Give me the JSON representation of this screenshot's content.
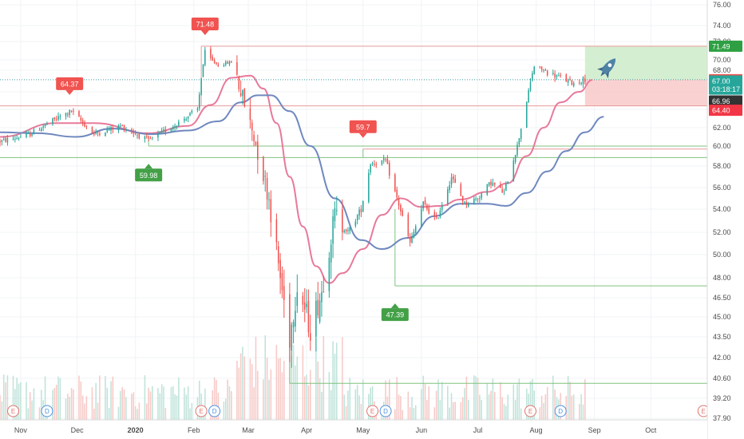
{
  "chart_data": {
    "type": "candlestick",
    "y_axis": {
      "ticks": [
        76.0,
        74.0,
        72.0,
        70.0,
        68.0,
        66.0,
        64.0,
        62.0,
        60.0,
        58.0,
        56.0,
        54.0,
        52.0,
        50.0,
        48.0,
        46.5,
        45.0,
        43.5,
        42.0,
        40.6,
        39.2,
        37.9
      ],
      "tick_labels": [
        "76.00",
        "74.00",
        "72.00",
        "70.00",
        "68.00",
        "66.00",
        "64.00",
        "62.00",
        "60.00",
        "58.00",
        "56.00",
        "54.00",
        "52.00",
        "50.00",
        "48.00",
        "46.50",
        "45.00",
        "43.50",
        "42.00",
        "40.60",
        "39.20",
        "37.90"
      ]
    },
    "x_axis": {
      "ticks": [
        {
          "date": "2019-11-01",
          "label": "Nov"
        },
        {
          "date": "2019-12-01",
          "label": "Dec"
        },
        {
          "date": "2020-01-01",
          "label": "2020"
        },
        {
          "date": "2020-02-01",
          "label": "Feb"
        },
        {
          "date": "2020-03-01",
          "label": "Mar"
        },
        {
          "date": "2020-04-01",
          "label": "Apr"
        },
        {
          "date": "2020-05-01",
          "label": "May"
        },
        {
          "date": "2020-06-01",
          "label": "Jun"
        },
        {
          "date": "2020-07-01",
          "label": "Jul"
        },
        {
          "date": "2020-08-01",
          "label": "Aug"
        },
        {
          "date": "2020-09-01",
          "label": "Sep"
        },
        {
          "date": "2020-10-01",
          "label": "Oct"
        }
      ]
    },
    "price_series": {
      "name": "",
      "anchors": [
        [
          "2019-10-21",
          60.5
        ],
        [
          "2019-11-05",
          61.2
        ],
        [
          "2019-11-20",
          63.0
        ],
        [
          "2019-11-28",
          63.8
        ],
        [
          "2019-12-10",
          61.3
        ],
        [
          "2019-12-24",
          62.2
        ],
        [
          "2020-01-08",
          60.6
        ],
        [
          "2020-01-22",
          62.3
        ],
        [
          "2020-02-03",
          64.0
        ],
        [
          "2020-02-07",
          70.8
        ],
        [
          "2020-02-14",
          69.0
        ],
        [
          "2020-02-21",
          69.6
        ],
        [
          "2020-02-26",
          66.0
        ],
        [
          "2020-03-04",
          61.0
        ],
        [
          "2020-03-12",
          55.0
        ],
        [
          "2020-03-18",
          48.0
        ],
        [
          "2020-03-23",
          43.5
        ],
        [
          "2020-03-27",
          47.5
        ],
        [
          "2020-04-03",
          44.2
        ],
        [
          "2020-04-09",
          47.0
        ],
        [
          "2020-04-16",
          53.5
        ],
        [
          "2020-04-23",
          52.0
        ],
        [
          "2020-04-30",
          54.0
        ],
        [
          "2020-05-05",
          58.3
        ],
        [
          "2020-05-13",
          58.5
        ],
        [
          "2020-05-19",
          55.0
        ],
        [
          "2020-05-26",
          51.0
        ],
        [
          "2020-06-02",
          54.5
        ],
        [
          "2020-06-09",
          53.0
        ],
        [
          "2020-06-17",
          57.0
        ],
        [
          "2020-06-24",
          54.5
        ],
        [
          "2020-07-01",
          55.0
        ],
        [
          "2020-07-08",
          56.5
        ],
        [
          "2020-07-15",
          55.5
        ],
        [
          "2020-07-22",
          60.0
        ],
        [
          "2020-07-27",
          65.0
        ],
        [
          "2020-07-31",
          68.7
        ],
        [
          "2020-08-07",
          67.8
        ],
        [
          "2020-08-14",
          67.3
        ],
        [
          "2020-08-21",
          66.8
        ],
        [
          "2020-08-27",
          67.2
        ]
      ]
    },
    "moving_averages": [
      {
        "name": "",
        "color": "#e8799a",
        "points": [
          [
            "2019-10-21",
            61.0
          ],
          [
            "2019-11-20",
            62.5
          ],
          [
            "2019-12-10",
            62.5
          ],
          [
            "2020-01-08",
            61.4
          ],
          [
            "2020-01-29",
            62.2
          ],
          [
            "2020-02-10",
            64.5
          ],
          [
            "2020-02-21",
            67.3
          ],
          [
            "2020-03-02",
            67.5
          ],
          [
            "2020-03-09",
            66.3
          ],
          [
            "2020-03-16",
            62.5
          ],
          [
            "2020-03-23",
            57.0
          ],
          [
            "2020-03-30",
            52.5
          ],
          [
            "2020-04-06",
            49.0
          ],
          [
            "2020-04-13",
            47.6
          ],
          [
            "2020-04-20",
            48.4
          ],
          [
            "2020-05-01",
            50.5
          ],
          [
            "2020-05-11",
            53.5
          ],
          [
            "2020-05-21",
            55.0
          ],
          [
            "2020-06-01",
            54.2
          ],
          [
            "2020-06-11",
            54.3
          ],
          [
            "2020-06-22",
            54.9
          ],
          [
            "2020-07-06",
            55.6
          ],
          [
            "2020-07-17",
            56.4
          ],
          [
            "2020-07-27",
            59.0
          ],
          [
            "2020-08-05",
            62.0
          ],
          [
            "2020-08-14",
            64.8
          ],
          [
            "2020-08-24",
            66.0
          ],
          [
            "2020-08-31",
            67.1
          ]
        ]
      },
      {
        "name": "",
        "color": "#6f88bf",
        "points": [
          [
            "2019-10-21",
            61.5
          ],
          [
            "2019-11-10",
            61.4
          ],
          [
            "2019-11-30",
            61.0
          ],
          [
            "2019-12-20",
            61.9
          ],
          [
            "2020-01-10",
            61.3
          ],
          [
            "2020-01-29",
            61.7
          ],
          [
            "2020-02-14",
            62.7
          ],
          [
            "2020-02-26",
            64.8
          ],
          [
            "2020-03-06",
            65.6
          ],
          [
            "2020-03-13",
            65.6
          ],
          [
            "2020-03-23",
            63.8
          ],
          [
            "2020-04-03",
            60.0
          ],
          [
            "2020-04-16",
            55.0
          ],
          [
            "2020-04-30",
            51.3
          ],
          [
            "2020-05-11",
            50.5
          ],
          [
            "2020-05-25",
            51.5
          ],
          [
            "2020-06-08",
            53.4
          ],
          [
            "2020-06-22",
            54.5
          ],
          [
            "2020-07-06",
            54.5
          ],
          [
            "2020-07-16",
            54.3
          ],
          [
            "2020-07-27",
            55.5
          ],
          [
            "2020-08-07",
            57.5
          ],
          [
            "2020-08-17",
            59.5
          ],
          [
            "2020-08-27",
            61.5
          ],
          [
            "2020-09-06",
            63.2
          ]
        ]
      }
    ],
    "horizontal_levels": [
      {
        "price": 71.49,
        "from": "2020-02-05",
        "to": "2020-10-31",
        "color": "#e89a9a"
      },
      {
        "price": 64.4,
        "from": "2019-10-21",
        "to": "2020-10-31",
        "color": "#e89a9a"
      },
      {
        "price": 67.12,
        "from": "2019-10-21",
        "to": "2020-10-31",
        "color": "#3a9aa0",
        "dotted": true
      },
      {
        "price": 60.0,
        "from": "2020-01-08",
        "to": "2020-10-31",
        "color": "#7fc27f"
      },
      {
        "price": 59.7,
        "from": "2020-05-01",
        "to": "2020-10-31",
        "color": "#e89a9a"
      },
      {
        "price": 58.85,
        "from": "2019-10-21",
        "to": "2020-10-31",
        "color": "#7fc27f"
      },
      {
        "price": 47.39,
        "from": "2020-05-18",
        "to": "2020-10-31",
        "color": "#7fc27f"
      },
      {
        "price": 40.25,
        "from": "2020-03-23",
        "to": "2020-10-31",
        "color": "#7fc27f"
      }
    ],
    "position_zone": {
      "from": "2020-08-27",
      "to": "2020-10-31",
      "entry": 67.12,
      "target": 71.49,
      "stop": 64.4
    },
    "price_markers": [
      {
        "text": "71.48",
        "date": "2020-02-07",
        "price": 71.48,
        "kind": "high"
      },
      {
        "text": "64.37",
        "date": "2019-11-27",
        "price": 64.37,
        "kind": "high"
      },
      {
        "text": "59.7",
        "date": "2020-05-01",
        "price": 59.7,
        "kind": "high"
      },
      {
        "text": "59.98",
        "date": "2020-01-08",
        "price": 59.98,
        "kind": "low"
      },
      {
        "text": "47.39",
        "date": "2020-05-18",
        "price": 47.39,
        "kind": "low"
      }
    ],
    "axis_tags": [
      {
        "text": "71.49",
        "price": 71.49,
        "bg": "#2ea043"
      },
      {
        "text": "67.12",
        "price": 67.12,
        "bg": "#f05350"
      },
      {
        "text": "67.00",
        "price": 67.0,
        "bg": "#26a69a"
      },
      {
        "text": "03:18:17",
        "price": 66.25,
        "bg": "#26a69a"
      },
      {
        "text": "66.96",
        "price": 64.95,
        "bg": "#333333"
      },
      {
        "text": "64.40",
        "price": 63.9,
        "bg": "#f23645"
      }
    ],
    "event_badges": [
      {
        "letter": "E",
        "date": "2019-10-28",
        "color": "#e0726c"
      },
      {
        "letter": "D",
        "date": "2019-11-15",
        "color": "#4a90e2"
      },
      {
        "letter": "E",
        "date": "2020-02-05",
        "color": "#e0726c"
      },
      {
        "letter": "D",
        "date": "2020-02-12",
        "color": "#4a90e2"
      },
      {
        "letter": "E",
        "date": "2020-05-06",
        "color": "#e0726c"
      },
      {
        "letter": "D",
        "date": "2020-05-13",
        "color": "#4a90e2"
      },
      {
        "letter": "E",
        "date": "2020-07-29",
        "color": "#e0726c"
      },
      {
        "letter": "D",
        "date": "2020-08-14",
        "color": "#4a90e2"
      },
      {
        "letter": "E",
        "date": "2020-10-29",
        "color": "#e0726c"
      }
    ],
    "colors": {
      "up": "#26a69a",
      "down": "#ef5350",
      "up_volume": "#bfe3d9",
      "down_volume": "#f6c9c6",
      "target_fill": "#cdebc9",
      "stop_fill": "#f9c9c9"
    },
    "icons": [
      "rocket-icon"
    ]
  }
}
